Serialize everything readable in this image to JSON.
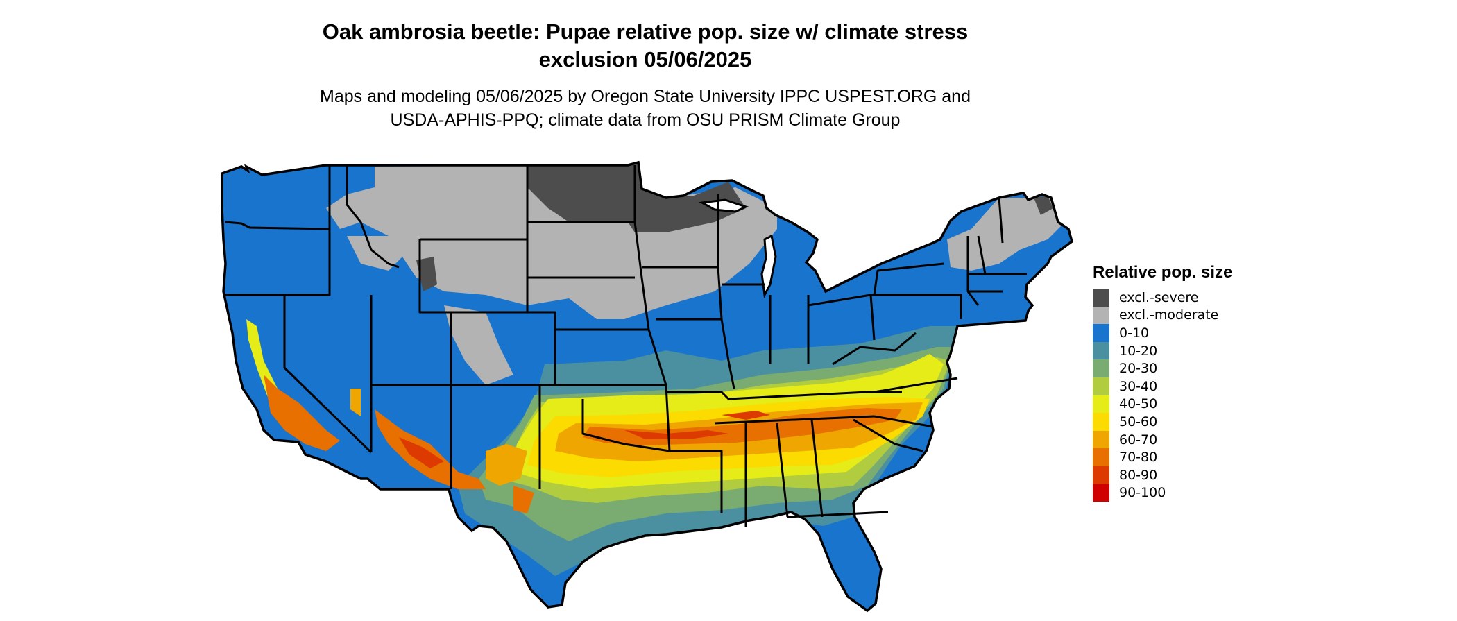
{
  "map": {
    "title_line1": "Oak ambrosia beetle: Pupae relative pop. size w/ climate stress",
    "title_line2": "exclusion 05/06/2025",
    "subtitle_line1": "Maps and modeling 05/06/2025 by Oregon State University IPPC USPEST.ORG and",
    "subtitle_line2": "USDA-APHIS-PPQ; climate data from OSU PRISM Climate Group",
    "region": "Contiguous United States"
  },
  "legend": {
    "title": "Relative pop. size",
    "items": [
      {
        "label": "excl.-severe",
        "color": "#4d4d4d"
      },
      {
        "label": "excl.-moderate",
        "color": "#b3b3b3"
      },
      {
        "label": "0-10",
        "color": "#1874cd"
      },
      {
        "label": "10-20",
        "color": "#4a90a0"
      },
      {
        "label": "20-30",
        "color": "#7aab70"
      },
      {
        "label": "30-40",
        "color": "#b2cc3f"
      },
      {
        "label": "40-50",
        "color": "#e6ec17"
      },
      {
        "label": "50-60",
        "color": "#fbdb00"
      },
      {
        "label": "60-70",
        "color": "#f0a600"
      },
      {
        "label": "70-80",
        "color": "#e87000"
      },
      {
        "label": "80-90",
        "color": "#dc3a00"
      },
      {
        "label": "90-100",
        "color": "#d10000"
      }
    ]
  }
}
